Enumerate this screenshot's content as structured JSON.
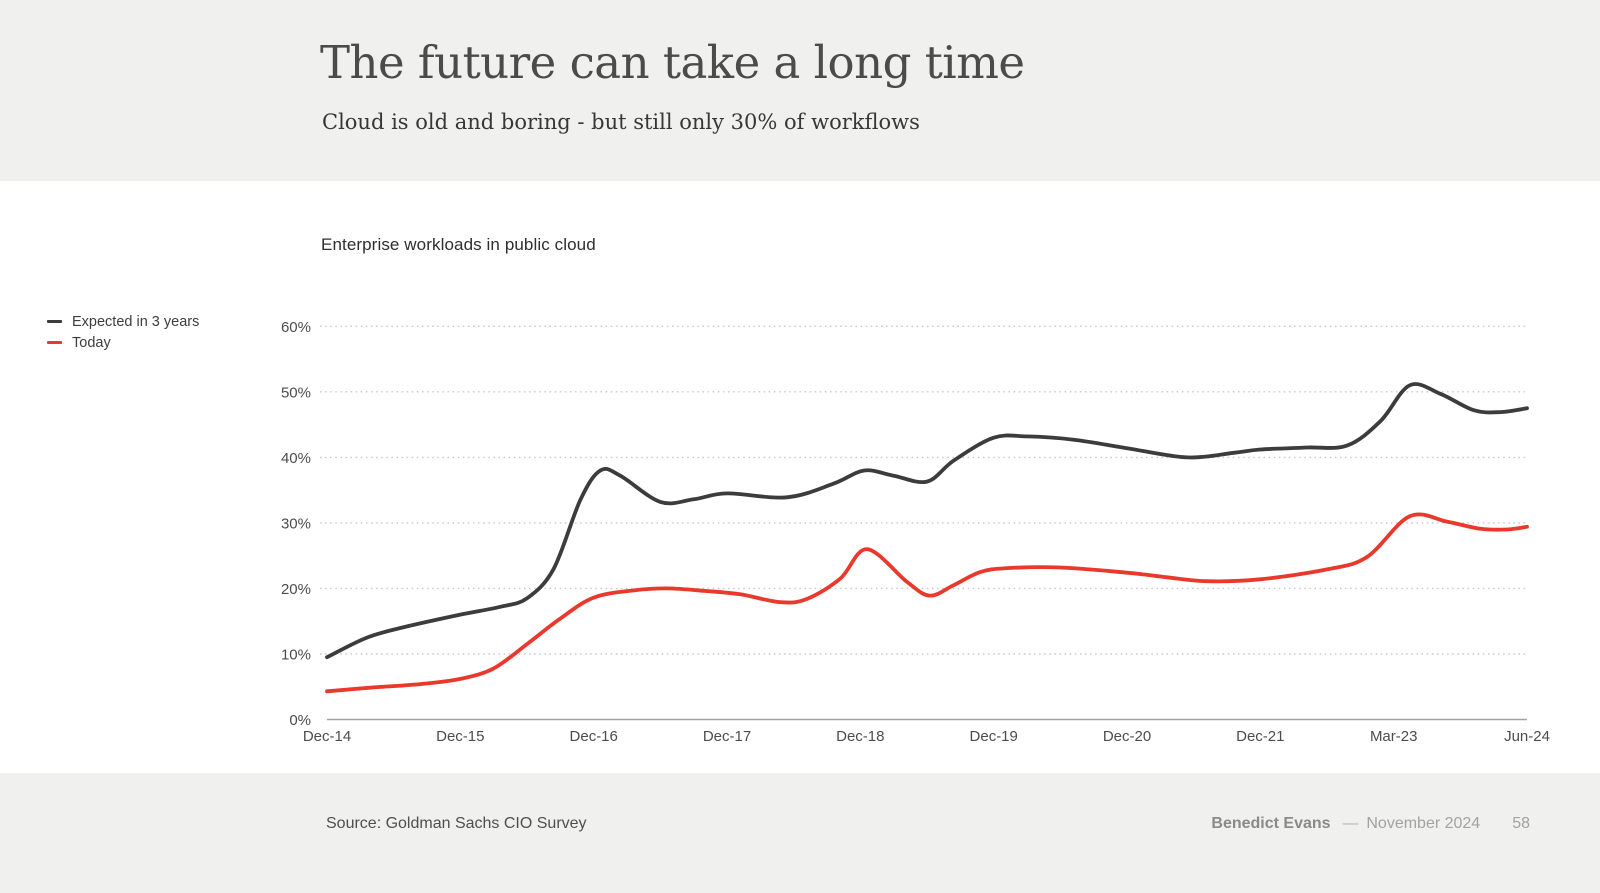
{
  "header": {
    "title": "The future can take a long time",
    "subtitle": "Cloud is old and boring - but still only 30% of workflows"
  },
  "chart": {
    "title": "Enterprise workloads in public cloud",
    "legend": [
      {
        "label": "Expected in 3 years",
        "color": "#3c3c3c"
      },
      {
        "label": "Today",
        "color": "#e8392c"
      }
    ]
  },
  "footer": {
    "source": "Source: Goldman Sachs CIO Survey",
    "author": "Benedict Evans",
    "dash": "––",
    "date": "November 2024",
    "page_number": "58"
  },
  "chart_data": {
    "type": "line",
    "title": "Enterprise workloads in public cloud",
    "x_tick_labels": [
      "Dec-14",
      "Dec-15",
      "Dec-16",
      "Dec-17",
      "Dec-18",
      "Dec-19",
      "Dec-20",
      "Dec-21",
      "Mar-23",
      "Jun-24"
    ],
    "x_note": "series x values are in tick units: 0 = Dec-14 ... 9 = Jun-24; survey waves fall between ticks",
    "ylim": [
      0,
      60
    ],
    "ytick_step": 10,
    "ytick_format": "percent",
    "grid": "dotted horizontal gridlines at each 10%, solid baseline at 0%",
    "legend_position": "outside plot, upper left",
    "colors": {
      "expected_line": "#3c3c3c",
      "today_line": "#e8392c",
      "gridline": "#c7c7c7",
      "axis_line": "#a3a3a3",
      "band_background": "#f0f0ef"
    },
    "key_values": {
      "expected_start_dec14": 9.5,
      "expected_peak_mar23": 51,
      "expected_end_jun24": 47.5,
      "today_start_dec14": 4.3,
      "today_peak_mar23": 31,
      "today_end_jun24": 29.5
    },
    "series": [
      {
        "name": "Expected in 3 years",
        "color": "#3c3c3c",
        "points": [
          [
            0,
            9.5
          ],
          [
            0.3,
            12.5
          ],
          [
            0.6,
            14.2
          ],
          [
            1,
            16
          ],
          [
            1.3,
            17.2
          ],
          [
            1.5,
            18.5
          ],
          [
            1.7,
            23
          ],
          [
            1.9,
            33.5
          ],
          [
            2.05,
            38
          ],
          [
            2.2,
            37.2
          ],
          [
            2.5,
            33.2
          ],
          [
            2.75,
            33.6
          ],
          [
            3,
            34.5
          ],
          [
            3.45,
            33.9
          ],
          [
            3.8,
            36
          ],
          [
            4.03,
            38
          ],
          [
            4.25,
            37.2
          ],
          [
            4.5,
            36.3
          ],
          [
            4.7,
            39.5
          ],
          [
            5,
            43
          ],
          [
            5.25,
            43.2
          ],
          [
            5.6,
            42.7
          ],
          [
            6,
            41.4
          ],
          [
            6.45,
            40
          ],
          [
            6.8,
            40.7
          ],
          [
            7,
            41.2
          ],
          [
            7.35,
            41.5
          ],
          [
            7.65,
            41.8
          ],
          [
            7.9,
            45.5
          ],
          [
            8.12,
            51
          ],
          [
            8.35,
            49.7
          ],
          [
            8.6,
            47.2
          ],
          [
            8.8,
            46.9
          ],
          [
            9,
            47.5
          ]
        ]
      },
      {
        "name": "Today",
        "color": "#e8392c",
        "points": [
          [
            0,
            4.3
          ],
          [
            0.35,
            4.9
          ],
          [
            0.7,
            5.4
          ],
          [
            1,
            6.2
          ],
          [
            1.25,
            7.8
          ],
          [
            1.5,
            11.5
          ],
          [
            1.75,
            15.4
          ],
          [
            2,
            18.6
          ],
          [
            2.3,
            19.7
          ],
          [
            2.55,
            20
          ],
          [
            2.85,
            19.6
          ],
          [
            3.1,
            19.1
          ],
          [
            3.4,
            17.9
          ],
          [
            3.6,
            18.4
          ],
          [
            3.85,
            21.5
          ],
          [
            4.05,
            26
          ],
          [
            4.35,
            21
          ],
          [
            4.52,
            18.9
          ],
          [
            4.7,
            20.5
          ],
          [
            4.9,
            22.5
          ],
          [
            5.1,
            23.1
          ],
          [
            5.5,
            23.2
          ],
          [
            6,
            22.4
          ],
          [
            6.3,
            21.7
          ],
          [
            6.6,
            21.1
          ],
          [
            7,
            21.4
          ],
          [
            7.5,
            22.9
          ],
          [
            7.8,
            24.8
          ],
          [
            8.12,
            31
          ],
          [
            8.4,
            30.2
          ],
          [
            8.65,
            29.1
          ],
          [
            8.85,
            29
          ],
          [
            9,
            29.4
          ]
        ]
      }
    ]
  }
}
